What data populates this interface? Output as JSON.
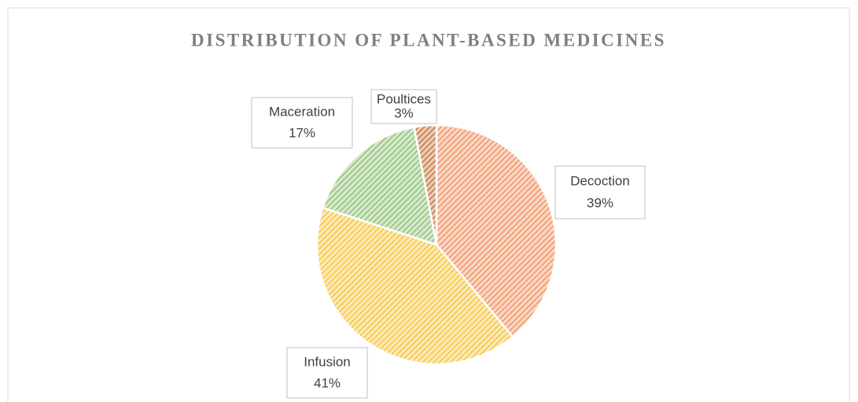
{
  "chart_data": {
    "type": "pie",
    "title": "DISTRIBUTION OF PLANT-BASED MEDICINES",
    "categories": [
      "Decoction",
      "Infusion",
      "Maceration",
      "Poultices"
    ],
    "values": [
      39,
      41,
      17,
      3
    ],
    "value_labels": [
      "39%",
      "41%",
      "17%",
      "3%"
    ],
    "colors": [
      "#f08a55",
      "#f5bf2e",
      "#86bd6c",
      "#c2692f"
    ]
  }
}
